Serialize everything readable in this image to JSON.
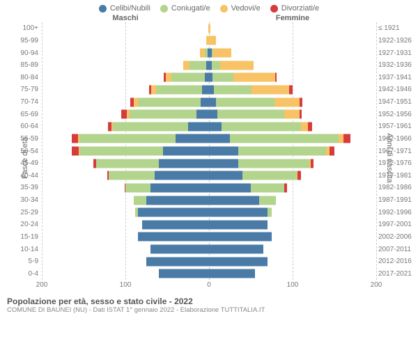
{
  "legend": [
    {
      "label": "Celibi/Nubili",
      "color": "#4a7ba6"
    },
    {
      "label": "Coniugati/e",
      "color": "#b3d48c"
    },
    {
      "label": "Vedovi/e",
      "color": "#f7c366"
    },
    {
      "label": "Divorziati/e",
      "color": "#d73c3c"
    }
  ],
  "header_male": "Maschi",
  "header_female": "Femmine",
  "axis_left_title": "Fasce di età",
  "axis_right_title": "Anni di nascita",
  "title": "Popolazione per età, sesso e stato civile - 2022",
  "subtitle": "COMUNE DI BAUNEI (NU) - Dati ISTAT 1° gennaio 2022 - Elaborazione TUTTITALIA.IT",
  "x_max": 200,
  "x_ticks": [
    200,
    100,
    0,
    100,
    200
  ],
  "grid_positions_pct": [
    0,
    25,
    50,
    75,
    100
  ],
  "colors": {
    "grid": "#cccccc"
  },
  "rows": [
    {
      "age": "100+",
      "birth": "≤ 1921",
      "m": [
        0,
        0,
        1,
        0
      ],
      "f": [
        0,
        0,
        2,
        0
      ]
    },
    {
      "age": "95-99",
      "birth": "1922-1926",
      "m": [
        0,
        0,
        3,
        0
      ],
      "f": [
        0,
        0,
        8,
        0
      ]
    },
    {
      "age": "90-94",
      "birth": "1927-1931",
      "m": [
        2,
        3,
        6,
        0
      ],
      "f": [
        3,
        2,
        22,
        0
      ]
    },
    {
      "age": "85-89",
      "birth": "1932-1936",
      "m": [
        3,
        20,
        8,
        0
      ],
      "f": [
        3,
        10,
        40,
        0
      ]
    },
    {
      "age": "80-84",
      "birth": "1937-1941",
      "m": [
        5,
        40,
        7,
        2
      ],
      "f": [
        4,
        25,
        50,
        2
      ]
    },
    {
      "age": "75-79",
      "birth": "1942-1946",
      "m": [
        8,
        55,
        6,
        3
      ],
      "f": [
        6,
        45,
        45,
        4
      ]
    },
    {
      "age": "70-74",
      "birth": "1947-1951",
      "m": [
        10,
        75,
        5,
        4
      ],
      "f": [
        8,
        70,
        30,
        4
      ]
    },
    {
      "age": "65-69",
      "birth": "1952-1956",
      "m": [
        15,
        80,
        3,
        7
      ],
      "f": [
        10,
        80,
        18,
        3
      ]
    },
    {
      "age": "60-64",
      "birth": "1957-1961",
      "m": [
        25,
        90,
        2,
        4
      ],
      "f": [
        15,
        95,
        8,
        5
      ]
    },
    {
      "age": "55-59",
      "birth": "1962-1966",
      "m": [
        40,
        115,
        2,
        7
      ],
      "f": [
        25,
        130,
        6,
        8
      ]
    },
    {
      "age": "50-54",
      "birth": "1967-1971",
      "m": [
        55,
        100,
        1,
        8
      ],
      "f": [
        35,
        105,
        4,
        6
      ]
    },
    {
      "age": "45-49",
      "birth": "1972-1976",
      "m": [
        60,
        75,
        0,
        3
      ],
      "f": [
        35,
        85,
        2,
        3
      ]
    },
    {
      "age": "40-44",
      "birth": "1977-1981",
      "m": [
        65,
        55,
        0,
        2
      ],
      "f": [
        40,
        65,
        1,
        4
      ]
    },
    {
      "age": "35-39",
      "birth": "1982-1986",
      "m": [
        70,
        30,
        0,
        1
      ],
      "f": [
        50,
        40,
        0,
        3
      ]
    },
    {
      "age": "30-34",
      "birth": "1987-1991",
      "m": [
        75,
        15,
        0,
        0
      ],
      "f": [
        60,
        20,
        0,
        0
      ]
    },
    {
      "age": "25-29",
      "birth": "1992-1996",
      "m": [
        85,
        3,
        0,
        0
      ],
      "f": [
        70,
        5,
        0,
        0
      ]
    },
    {
      "age": "20-24",
      "birth": "1997-2001",
      "m": [
        80,
        0,
        0,
        0
      ],
      "f": [
        70,
        0,
        0,
        0
      ]
    },
    {
      "age": "15-19",
      "birth": "2002-2006",
      "m": [
        85,
        0,
        0,
        0
      ],
      "f": [
        75,
        0,
        0,
        0
      ]
    },
    {
      "age": "10-14",
      "birth": "2007-2011",
      "m": [
        70,
        0,
        0,
        0
      ],
      "f": [
        65,
        0,
        0,
        0
      ]
    },
    {
      "age": "5-9",
      "birth": "2012-2016",
      "m": [
        75,
        0,
        0,
        0
      ],
      "f": [
        70,
        0,
        0,
        0
      ]
    },
    {
      "age": "0-4",
      "birth": "2017-2021",
      "m": [
        60,
        0,
        0,
        0
      ],
      "f": [
        55,
        0,
        0,
        0
      ]
    }
  ]
}
